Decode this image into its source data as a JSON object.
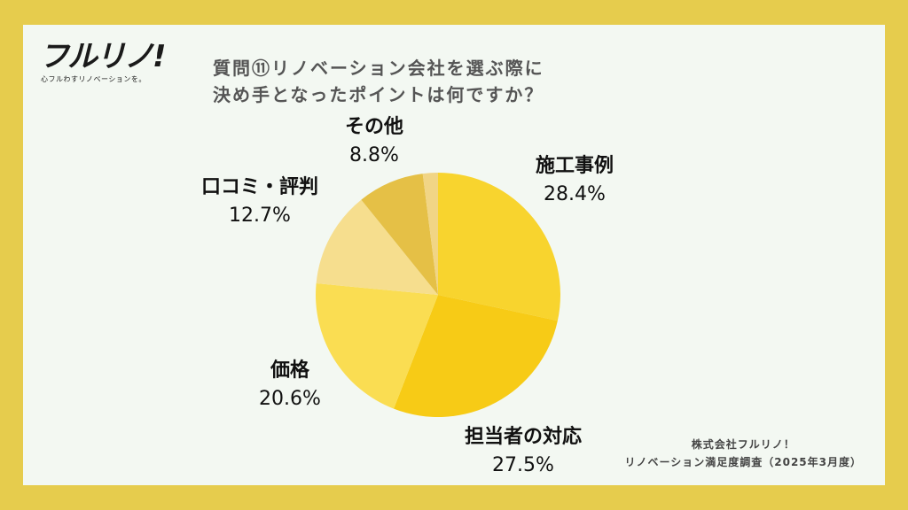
{
  "logo": {
    "mark": "フルリノ!",
    "tagline": "心フルわすリノベーションを。"
  },
  "title": {
    "line1": "質問⑪リノベーション会社を選ぶ際に",
    "line2": "決め手となったポイントは何ですか？"
  },
  "source": {
    "line1": "株式会社フルリノ！",
    "line2": "リノベーション満足度調査（2025年3月度）"
  },
  "colors": {
    "background": "#E6CC4D",
    "panel": "#F3F8F2"
  },
  "chart_data": {
    "type": "pie",
    "title": "質問⑪リノベーション会社を選ぶ際に決め手となったポイントは何ですか？",
    "start_angle_deg": 0,
    "direction": "clockwise",
    "slices": [
      {
        "label": "施工事例",
        "value": 28.4,
        "display": "28.4%",
        "color": "#F8D42E"
      },
      {
        "label": "担当者の対応",
        "value": 27.5,
        "display": "27.5%",
        "color": "#F7CB16"
      },
      {
        "label": "価格",
        "value": 20.6,
        "display": "20.6%",
        "color": "#FADD52"
      },
      {
        "label": "口コミ・評判",
        "value": 12.7,
        "display": "12.7%",
        "color": "#F6DE8E"
      },
      {
        "label": "その他",
        "value": 8.8,
        "display": "8.8%",
        "color": "#E5C046"
      },
      {
        "label": "",
        "value": 2.0,
        "display": "",
        "color": "#F1D585"
      }
    ]
  }
}
